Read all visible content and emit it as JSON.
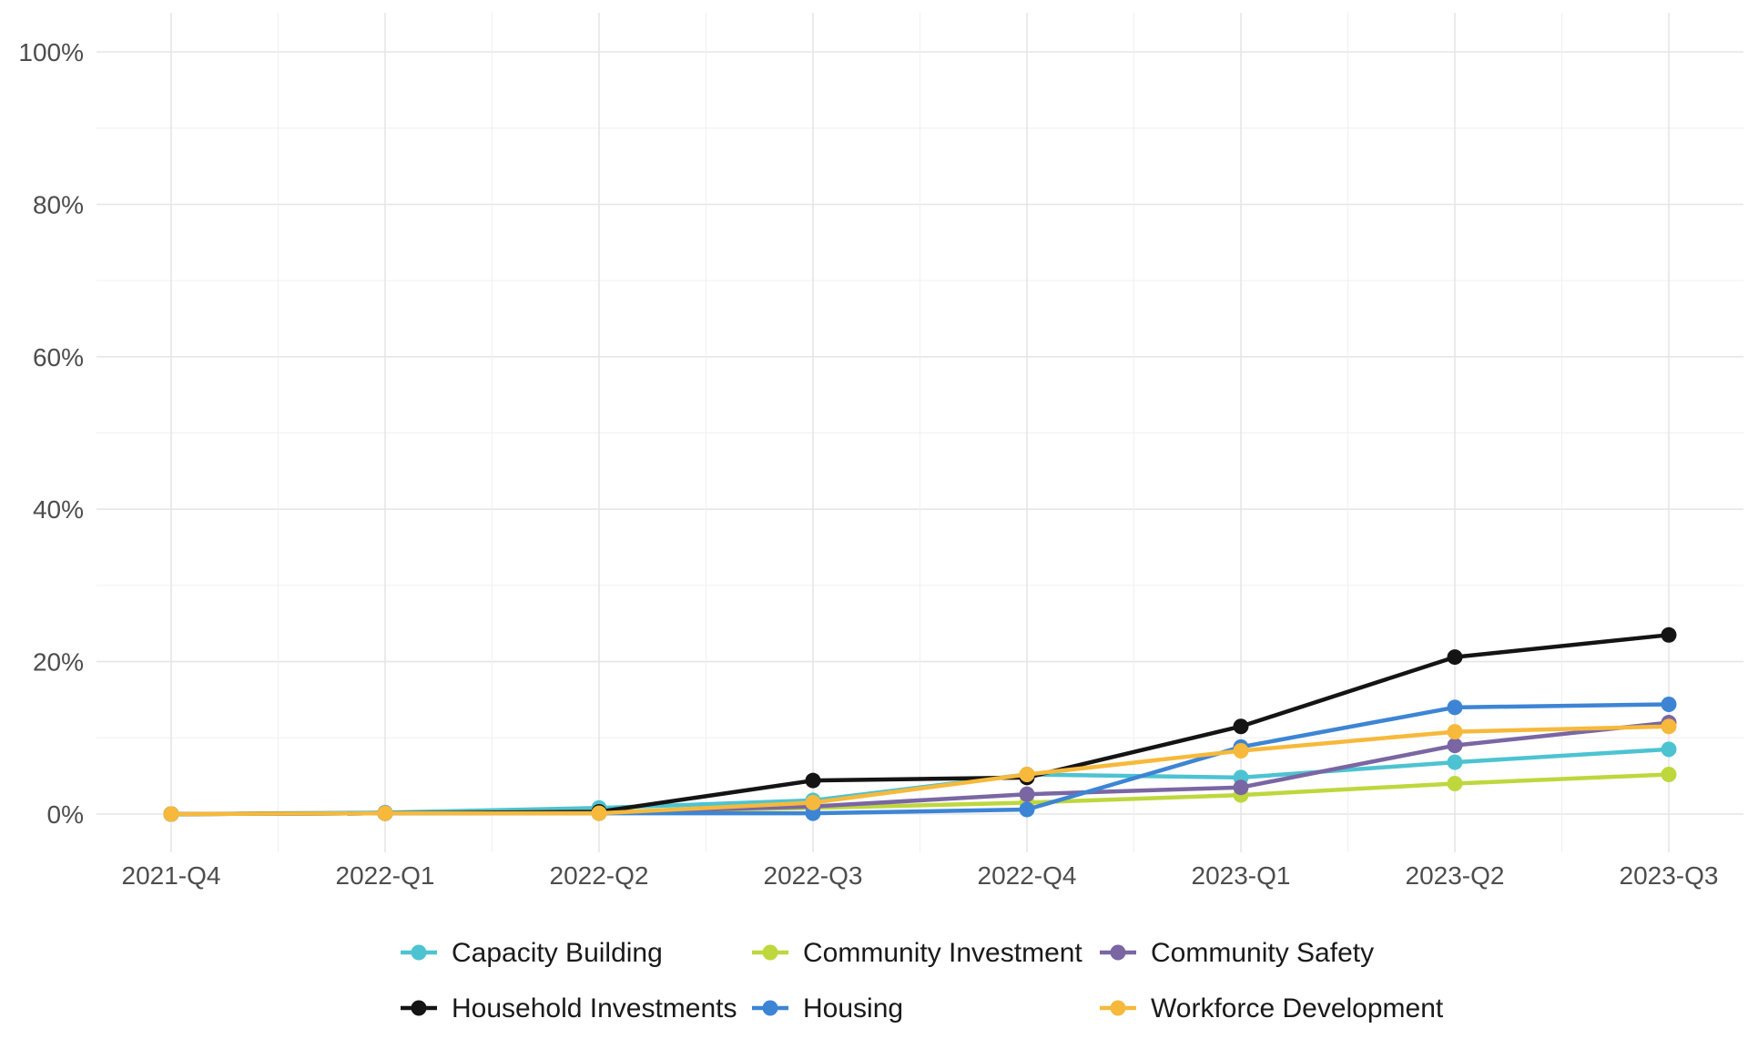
{
  "chart_data": {
    "type": "line",
    "title": "",
    "xlabel": "",
    "ylabel": "",
    "categories": [
      "2021-Q4",
      "2022-Q1",
      "2022-Q2",
      "2022-Q3",
      "2022-Q4",
      "2023-Q1",
      "2023-Q2",
      "2023-Q3"
    ],
    "ylim": [
      0,
      100
    ],
    "y_ticks": [
      0,
      20,
      40,
      60,
      80,
      100
    ],
    "y_tick_labels": [
      "0%",
      "20%",
      "40%",
      "60%",
      "80%",
      "100%"
    ],
    "grid": true,
    "legend_position": "bottom",
    "series": [
      {
        "name": "Capacity Building",
        "color": "#4dc3d1",
        "values": [
          0,
          0.2,
          0.8,
          1.8,
          5.2,
          4.8,
          6.8,
          8.5
        ]
      },
      {
        "name": "Community Investment",
        "color": "#bed73d",
        "values": [
          0,
          0.1,
          0.3,
          0.8,
          1.5,
          2.5,
          4.0,
          5.2
        ]
      },
      {
        "name": "Community Safety",
        "color": "#7a66a3",
        "values": [
          0,
          0.1,
          0.2,
          1.0,
          2.6,
          3.5,
          9.0,
          12.0
        ]
      },
      {
        "name": "Household Investments",
        "color": "#141414",
        "values": [
          0,
          0.1,
          0.3,
          4.4,
          4.8,
          11.5,
          20.6,
          23.5
        ]
      },
      {
        "name": "Housing",
        "color": "#3d85d4",
        "values": [
          0,
          0.1,
          0.1,
          0.1,
          0.6,
          8.8,
          14.0,
          14.4
        ]
      },
      {
        "name": "Workforce Development",
        "color": "#f6b93b",
        "values": [
          0,
          0.1,
          0.1,
          1.5,
          5.2,
          8.3,
          10.8,
          11.5
        ]
      }
    ]
  }
}
